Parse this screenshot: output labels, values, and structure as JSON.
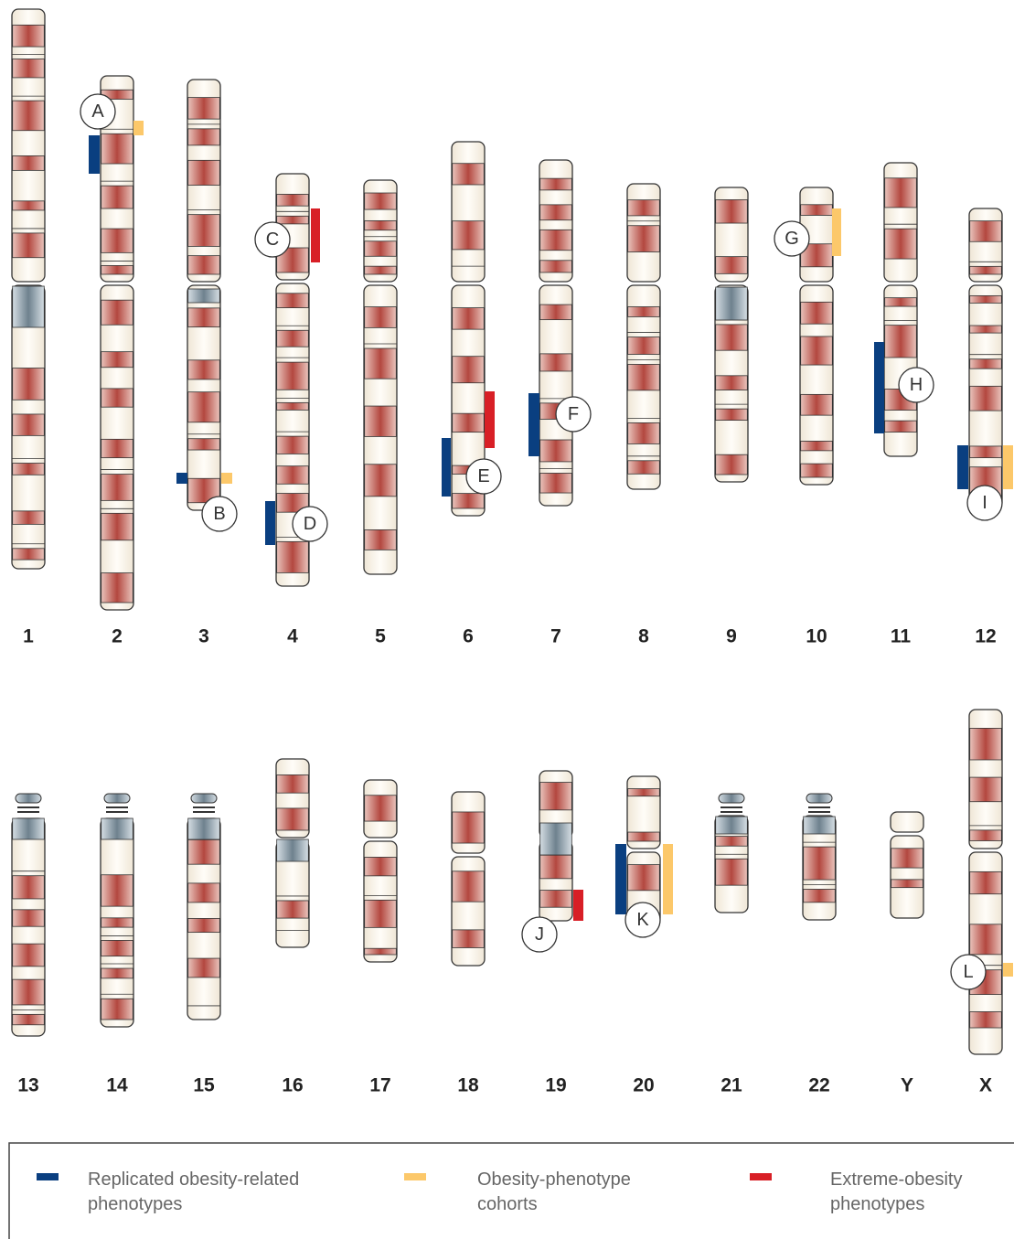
{
  "chromosomes": [
    {
      "label": "1"
    },
    {
      "label": "2"
    },
    {
      "label": "3"
    },
    {
      "label": "4"
    },
    {
      "label": "5"
    },
    {
      "label": "6"
    },
    {
      "label": "7"
    },
    {
      "label": "8"
    },
    {
      "label": "9"
    },
    {
      "label": "10"
    },
    {
      "label": "11"
    },
    {
      "label": "12"
    },
    {
      "label": "13"
    },
    {
      "label": "14"
    },
    {
      "label": "15"
    },
    {
      "label": "16"
    },
    {
      "label": "17"
    },
    {
      "label": "18"
    },
    {
      "label": "19"
    },
    {
      "label": "20"
    },
    {
      "label": "21"
    },
    {
      "label": "22"
    },
    {
      "label": "Y"
    },
    {
      "label": "X"
    }
  ],
  "loci": [
    {
      "label": "A"
    },
    {
      "label": "B"
    },
    {
      "label": "C"
    },
    {
      "label": "D"
    },
    {
      "label": "E"
    },
    {
      "label": "F"
    },
    {
      "label": "G"
    },
    {
      "label": "H"
    },
    {
      "label": "I"
    },
    {
      "label": "J"
    },
    {
      "label": "K"
    },
    {
      "label": "L"
    }
  ],
  "legend": [
    {
      "lines": [
        "Replicated obesity-related",
        "phenotypes"
      ]
    },
    {
      "lines": [
        "Obesity-phenotype",
        "cohorts"
      ]
    },
    {
      "lines": [
        "Extreme-obesity",
        "phenotypes"
      ]
    }
  ]
}
